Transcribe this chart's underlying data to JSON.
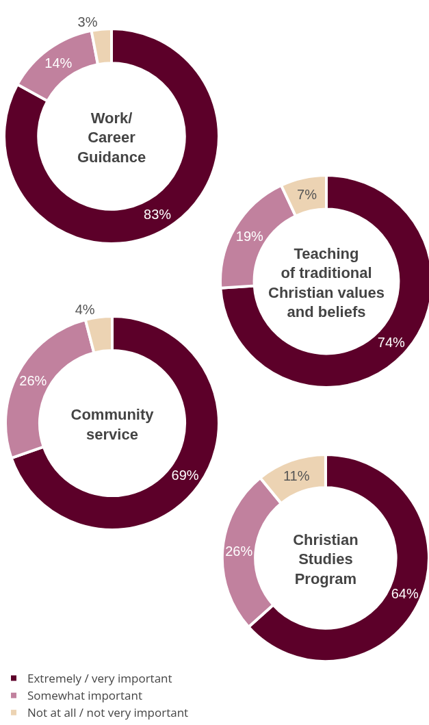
{
  "chart_data": [
    {
      "type": "donut",
      "title": "Work/\nCareer\nGuidance",
      "values": [
        83,
        14,
        3
      ],
      "value_labels": [
        "83%",
        "14%",
        "3%"
      ],
      "colors": [
        "#5c0029",
        "#c1819e",
        "#ecd3b3"
      ]
    },
    {
      "type": "donut",
      "title": "Teaching\nof traditional\nChristian values\nand beliefs",
      "values": [
        74,
        19,
        7
      ],
      "value_labels": [
        "74%",
        "19%",
        "7%"
      ],
      "colors": [
        "#5c0029",
        "#c1819e",
        "#ecd3b3"
      ]
    },
    {
      "type": "donut",
      "title": "Community\nservice",
      "values": [
        69,
        26,
        4
      ],
      "value_labels": [
        "69%",
        "26%",
        "4%"
      ],
      "colors": [
        "#5c0029",
        "#c1819e",
        "#ecd3b3"
      ]
    },
    {
      "type": "donut",
      "title": "Christian\nStudies\nProgram",
      "categories": [
        "Extremely / very important",
        "Somewhat important",
        "Not at all / not very important"
      ],
      "values": [
        64,
        26,
        11
      ],
      "value_labels": [
        "64%",
        "26%",
        "11%"
      ],
      "colors": [
        "#5c0029",
        "#c1819e",
        "#ecd3b3"
      ],
      "legend": "bottom left"
    }
  ]
}
